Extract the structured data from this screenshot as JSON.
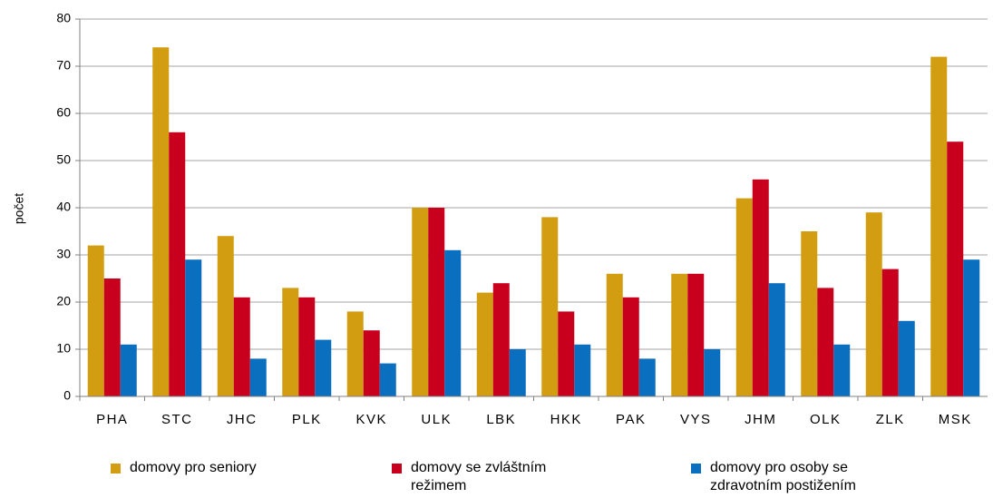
{
  "chart_data": {
    "type": "bar",
    "ylabel": "počet",
    "categories": [
      "PHA",
      "STC",
      "JHC",
      "PLK",
      "KVK",
      "ULK",
      "LBK",
      "HKK",
      "PAK",
      "VYS",
      "JHM",
      "OLK",
      "ZLK",
      "MSK"
    ],
    "series": [
      {
        "name": "domovy pro seniory",
        "color": "#d29d10",
        "values": [
          32,
          74,
          34,
          23,
          18,
          40,
          22,
          38,
          26,
          26,
          42,
          35,
          39,
          72
        ]
      },
      {
        "name": "domovy se zvláštním režimem",
        "color": "#c8001e",
        "values": [
          25,
          56,
          21,
          21,
          14,
          40,
          24,
          18,
          21,
          26,
          46,
          23,
          27,
          54
        ]
      },
      {
        "name": "domovy pro osoby se zdravotním postižením",
        "color": "#0a6fbf",
        "values": [
          11,
          29,
          8,
          12,
          7,
          31,
          10,
          11,
          8,
          10,
          24,
          11,
          16,
          29
        ]
      }
    ],
    "ylim": [
      0,
      80
    ],
    "yticks": [
      0,
      10,
      20,
      30,
      40,
      50,
      60,
      70,
      80
    ],
    "grid": true
  }
}
